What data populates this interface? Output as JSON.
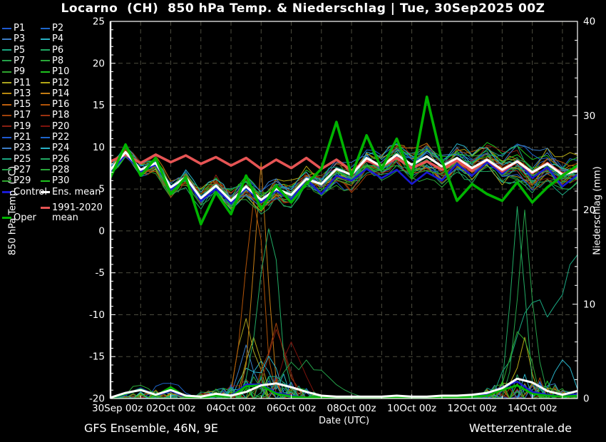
{
  "title": "Locarno  (CH)  850 hPa Temp. & Niederschlag | Tue, 30Sep2025 00Z",
  "footer": {
    "left": "GFS Ensemble, 46N, 9E",
    "right": "Wetterzentrale.de"
  },
  "colors": {
    "background": "#000000",
    "text": "#ffffff",
    "grid": "#4c4c3e",
    "frame": "#ffffff",
    "control": "#1a1ad2",
    "ens_mean": "#ffffff",
    "climate_mean": "#e65454",
    "oper": "#00b400"
  },
  "legend": {
    "members": [
      {
        "label": "P1",
        "color": "#1e5ad2"
      },
      {
        "label": "P2",
        "color": "#1e66cc"
      },
      {
        "label": "P3",
        "color": "#3c7ec8"
      },
      {
        "label": "P4",
        "color": "#28b2c8"
      },
      {
        "label": "P5",
        "color": "#1aa882"
      },
      {
        "label": "P6",
        "color": "#21aa64"
      },
      {
        "label": "P7",
        "color": "#25a24a"
      },
      {
        "label": "P8",
        "color": "#2aa838"
      },
      {
        "label": "P9",
        "color": "#2ea42e"
      },
      {
        "label": "P10",
        "color": "#1ec41e"
      },
      {
        "label": "P11",
        "color": "#aaa41e"
      },
      {
        "label": "P12",
        "color": "#b4a816"
      },
      {
        "label": "P13",
        "color": "#b8880e"
      },
      {
        "label": "P14",
        "color": "#c47c14"
      },
      {
        "label": "P15",
        "color": "#bd5f0e"
      },
      {
        "label": "P16",
        "color": "#b25408"
      },
      {
        "label": "P17",
        "color": "#a1420a"
      },
      {
        "label": "P18",
        "color": "#9c3210"
      },
      {
        "label": "P19",
        "color": "#8a2012"
      },
      {
        "label": "P20",
        "color": "#7e130c"
      },
      {
        "label": "P21",
        "color": "#1e5ad2"
      },
      {
        "label": "P22",
        "color": "#1e66cc"
      },
      {
        "label": "P23",
        "color": "#3c7ec8"
      },
      {
        "label": "P24",
        "color": "#28b2c8"
      },
      {
        "label": "P25",
        "color": "#1aa882"
      },
      {
        "label": "P26",
        "color": "#21aa64"
      },
      {
        "label": "P27",
        "color": "#25a24a"
      },
      {
        "label": "P28",
        "color": "#2aa838"
      },
      {
        "label": "P29",
        "color": "#2ea42e"
      },
      {
        "label": "P30",
        "color": "#1ec41e"
      }
    ],
    "special": [
      {
        "id": "control",
        "label": "Control",
        "color": "#1a1ad2",
        "row": 15,
        "col": 0
      },
      {
        "id": "ens-mean",
        "label": "Ens. mean",
        "color": "#ffffff",
        "row": 15,
        "col": 1
      },
      {
        "id": "climate-mean",
        "label": "1991-2020 mean",
        "label_lines": [
          "1991-2020",
          "mean"
        ],
        "color": "#e65454",
        "col": 1,
        "y": 285
      },
      {
        "id": "oper",
        "label": "Oper",
        "color": "#00b400",
        "col": 0,
        "y": 299
      }
    ]
  },
  "chart_data": {
    "type": "line",
    "title": "Locarno (CH) 850 hPa Temp. & Niederschlag | Tue, 30Sep2025 00Z",
    "x_axis": {
      "label": "Date (UTC)",
      "tick_labels": [
        "30Sep 00z",
        "02Oct 00z",
        "04Oct 00z",
        "06Oct 00z",
        "08Oct 00z",
        "10Oct 00z",
        "12Oct 00z",
        "14Oct 00z"
      ],
      "tick_days": [
        0,
        2,
        4,
        6,
        8,
        10,
        12,
        14
      ],
      "range_days": [
        0,
        15.5
      ],
      "minor_grid_step_days": 1
    },
    "y_left": {
      "label": "850 hPa Temp. (°C)",
      "range": [
        -20,
        25
      ],
      "ticks": [
        25,
        20,
        15,
        10,
        5,
        0,
        -5,
        -10,
        -15,
        -20
      ],
      "minor_step": 1
    },
    "y_right": {
      "label": "Niederschlag (mm)",
      "range": [
        0,
        40
      ],
      "ticks": [
        40,
        30,
        20,
        10,
        0
      ],
      "minor_step": 2
    },
    "grid": true,
    "legend_position": "left",
    "time_step_days": 0.5,
    "series": [
      {
        "name": "1991-2020 mean",
        "axis": "temp",
        "color": "#e65454",
        "width": 3.6,
        "values": [
          8.3,
          9.1,
          8.1,
          9.1,
          8.2,
          9.0,
          8.0,
          8.8,
          7.8,
          8.7,
          7.4,
          8.5,
          7.5,
          8.7,
          7.4,
          8.5,
          7.2,
          8.4,
          7.7,
          8.7,
          7.5,
          8.3,
          7.3,
          8.4,
          7.2,
          8.5,
          7.1,
          8.3,
          6.9,
          8.1,
          6.8,
          7.4
        ]
      },
      {
        "name": "Ens. mean temp",
        "axis": "temp",
        "color": "#ffffff",
        "width": 3.1,
        "values": [
          7.3,
          9.4,
          7.3,
          8.1,
          5.2,
          6.4,
          3.9,
          5.4,
          3.6,
          5.3,
          3.7,
          5.0,
          4.3,
          6.2,
          5.6,
          7.4,
          6.7,
          8.7,
          7.7,
          9.1,
          7.9,
          8.9,
          7.7,
          8.7,
          7.5,
          8.5,
          7.3,
          8.3,
          7.0,
          8.0,
          6.7,
          7.2
        ]
      },
      {
        "name": "Control temp",
        "axis": "temp",
        "color": "#1a1ad2",
        "width": 2.6,
        "values": [
          7.0,
          9.1,
          7.1,
          7.9,
          5.0,
          6.2,
          3.6,
          5.0,
          3.3,
          5.1,
          3.4,
          4.8,
          3.7,
          6.2,
          4.4,
          6.6,
          6.0,
          7.4,
          6.3,
          7.3,
          5.6,
          7.0,
          6.0,
          8.0,
          6.6,
          8.2,
          6.8,
          8.4,
          6.3,
          7.6,
          5.3,
          6.7
        ]
      },
      {
        "name": "Oper temp",
        "axis": "temp",
        "color": "#00b400",
        "width": 3.6,
        "values": [
          6.4,
          10.3,
          6.6,
          8.7,
          4.4,
          6.4,
          0.8,
          4.6,
          2.0,
          6.6,
          2.6,
          5.4,
          3.4,
          5.6,
          7.4,
          13.0,
          6.6,
          11.4,
          7.4,
          11.0,
          6.4,
          16.0,
          8.4,
          3.6,
          5.6,
          4.4,
          3.6,
          5.8,
          3.4,
          5.2,
          6.6,
          7.8
        ]
      },
      {
        "name": "Ens. mean precip",
        "axis": "precip",
        "color": "#ffffff",
        "width": 3.0,
        "values": [
          0.1,
          0.6,
          0.9,
          0.4,
          0.9,
          0.3,
          0.2,
          0.5,
          0.3,
          0.7,
          1.4,
          1.6,
          1.2,
          0.7,
          0.3,
          0.2,
          0.2,
          0.2,
          0.2,
          0.3,
          0.2,
          0.2,
          0.3,
          0.3,
          0.4,
          0.6,
          1.1,
          2.1,
          1.7,
          0.8,
          0.4,
          0.8
        ]
      },
      {
        "name": "Control precip",
        "axis": "precip",
        "color": "#1a1ad2",
        "width": 2.4,
        "values": [
          0.05,
          0.4,
          1.1,
          0.3,
          0.8,
          0.2,
          0.2,
          0.4,
          0.3,
          1.5,
          1.5,
          0.6,
          0.3,
          0.1,
          0.1,
          0.2,
          0.1,
          0.1,
          0.2,
          0.1,
          0.1,
          0.2,
          0.2,
          0.2,
          0.3,
          0.5,
          1.2,
          1.8,
          0.7,
          0.4,
          0.2,
          0.5
        ]
      },
      {
        "name": "Oper precip",
        "axis": "precip",
        "color": "#00b400",
        "width": 2.8,
        "values": [
          0.05,
          0.5,
          1.0,
          0.3,
          1.2,
          0.2,
          0.1,
          0.3,
          0.2,
          1.3,
          1.4,
          0.5,
          0.2,
          0.1,
          0.1,
          0.2,
          0.1,
          0.1,
          0.1,
          0.1,
          0.1,
          0.2,
          0.1,
          0.1,
          0.2,
          0.3,
          0.9,
          1.4,
          0.5,
          0.3,
          0.2,
          0.3
        ]
      }
    ],
    "ensemble": {
      "count": 30,
      "temp_envelope_min": [
        6.6,
        8.6,
        6.2,
        6.6,
        4.0,
        4.8,
        0.4,
        3.0,
        1.2,
        3.6,
        1.0,
        3.2,
        2.2,
        4.4,
        3.4,
        5.2,
        4.2,
        6.0,
        4.6,
        6.2,
        4.4,
        6.0,
        4.0,
        5.6,
        3.2,
        4.6,
        2.6,
        4.2,
        2.2,
        3.8,
        1.6,
        3.0
      ],
      "temp_envelope_max": [
        9.0,
        10.4,
        8.6,
        9.2,
        7.4,
        8.4,
        6.8,
        7.6,
        6.4,
        7.8,
        6.6,
        7.6,
        7.2,
        9.6,
        9.2,
        14.2,
        10.6,
        12.8,
        11.0,
        13.4,
        11.2,
        12.8,
        11.0,
        12.4,
        10.8,
        12.2,
        10.6,
        12.4,
        10.4,
        12.2,
        9.8,
        11.0
      ],
      "precip_events": [
        {
          "member": 15,
          "t": 4.75,
          "peak_mm": 21,
          "width_days": 0.28
        },
        {
          "member": 13,
          "t": 5.0,
          "peak_mm": 23,
          "width_days": 0.22
        },
        {
          "member": 25,
          "t": 5.25,
          "peak_mm": 18,
          "width_days": 0.3
        },
        {
          "member": 16,
          "t": 5.5,
          "peak_mm": 8,
          "width_days": 0.25
        },
        {
          "member": 18,
          "t": 5.5,
          "peak_mm": 6.5,
          "width_days": 0.3
        },
        {
          "member": 10,
          "t": 4.5,
          "peak_mm": 6.5,
          "width_days": 0.25
        },
        {
          "member": 11,
          "t": 4.75,
          "peak_mm": 6.5,
          "width_days": 0.25
        },
        {
          "member": 2,
          "t": 4.5,
          "peak_mm": 5.5,
          "width_days": 0.22
        },
        {
          "member": 3,
          "t": 5.0,
          "peak_mm": 4.0,
          "width_days": 0.3
        },
        {
          "member": 23,
          "t": 5.25,
          "peak_mm": 4.5,
          "width_days": 0.25
        },
        {
          "member": 19,
          "t": 6.0,
          "peak_mm": 6.0,
          "width_days": 0.3
        },
        {
          "member": 26,
          "t": 6.5,
          "peak_mm": 3.2,
          "width_days": 0.8
        },
        {
          "member": 25,
          "t": 13.5,
          "peak_mm": 19,
          "width_days": 0.22
        },
        {
          "member": 26,
          "t": 13.75,
          "peak_mm": 20,
          "width_days": 0.22
        },
        {
          "member": 24,
          "t": 14.0,
          "peak_mm": 10,
          "width_days": 0.55
        },
        {
          "member": 11,
          "t": 13.75,
          "peak_mm": 5,
          "width_days": 0.2
        },
        {
          "member": 28,
          "t": 13.5,
          "peak_mm": 6,
          "width_days": 0.3
        },
        {
          "member": 3,
          "t": 15.0,
          "peak_mm": 4,
          "width_days": 0.3
        },
        {
          "member": 24,
          "t": 15.5,
          "peak_mm": 15,
          "width_days": 0.5
        },
        {
          "member": 27,
          "t": 1.0,
          "peak_mm": 1.4,
          "width_days": 0.3
        },
        {
          "member": 21,
          "t": 2.0,
          "peak_mm": 1.6,
          "width_days": 0.3
        },
        {
          "member": 5,
          "t": 3.5,
          "peak_mm": 0.9,
          "width_days": 0.3
        }
      ]
    }
  }
}
